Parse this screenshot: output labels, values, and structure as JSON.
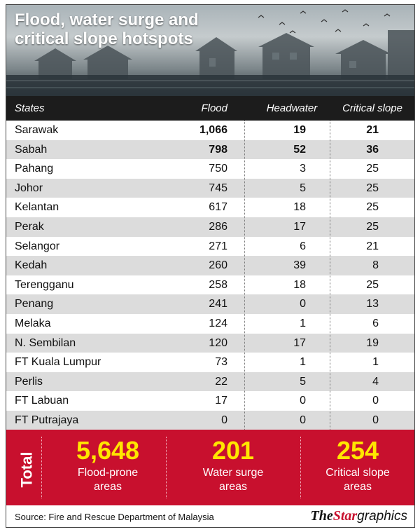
{
  "title": "Flood, water surge and critical slope hotspots",
  "chart_data": {
    "type": "table",
    "columns": [
      "States",
      "Flood",
      "Headwater",
      "Critical slope"
    ],
    "rows": [
      {
        "state": "Sarawak",
        "flood": "1,066",
        "headwater": "19",
        "critical_slope": "21"
      },
      {
        "state": "Sabah",
        "flood": "798",
        "headwater": "52",
        "critical_slope": "36"
      },
      {
        "state": "Pahang",
        "flood": "750",
        "headwater": "3",
        "critical_slope": "25"
      },
      {
        "state": "Johor",
        "flood": "745",
        "headwater": "5",
        "critical_slope": "25"
      },
      {
        "state": "Kelantan",
        "flood": "617",
        "headwater": "18",
        "critical_slope": "25"
      },
      {
        "state": "Perak",
        "flood": "286",
        "headwater": "17",
        "critical_slope": "25"
      },
      {
        "state": "Selangor",
        "flood": "271",
        "headwater": "6",
        "critical_slope": "21"
      },
      {
        "state": "Kedah",
        "flood": "260",
        "headwater": "39",
        "critical_slope": "8"
      },
      {
        "state": "Terengganu",
        "flood": "258",
        "headwater": "18",
        "critical_slope": "25"
      },
      {
        "state": "Penang",
        "flood": "241",
        "headwater": "0",
        "critical_slope": "13"
      },
      {
        "state": "Melaka",
        "flood": "124",
        "headwater": "1",
        "critical_slope": "6"
      },
      {
        "state": "N. Sembilan",
        "flood": "120",
        "headwater": "17",
        "critical_slope": "19"
      },
      {
        "state": "FT Kuala Lumpur",
        "flood": "73",
        "headwater": "1",
        "critical_slope": "1"
      },
      {
        "state": "Perlis",
        "flood": "22",
        "headwater": "5",
        "critical_slope": "4"
      },
      {
        "state": "FT Labuan",
        "flood": "17",
        "headwater": "0",
        "critical_slope": "0"
      },
      {
        "state": "FT Putrajaya",
        "flood": "0",
        "headwater": "0",
        "critical_slope": "0"
      }
    ],
    "totals": {
      "label": "Total",
      "flood": {
        "value": "5,648",
        "caption_line1": "Flood-prone",
        "caption_line2": "areas"
      },
      "water_surge": {
        "value": "201",
        "caption_line1": "Water surge",
        "caption_line2": "areas"
      },
      "critical_slope": {
        "value": "254",
        "caption_line1": "Critical slope",
        "caption_line2": "areas"
      }
    }
  },
  "source": "Source: Fire and Rescue Department of Malaysia",
  "brand": {
    "the": "The",
    "star": "Star",
    "graphics": "graphics"
  },
  "colors": {
    "header_bg": "#1c1c1c",
    "total_bg": "#c8102e",
    "total_number": "#ffe600",
    "row_alt": "#dcdcdc"
  }
}
